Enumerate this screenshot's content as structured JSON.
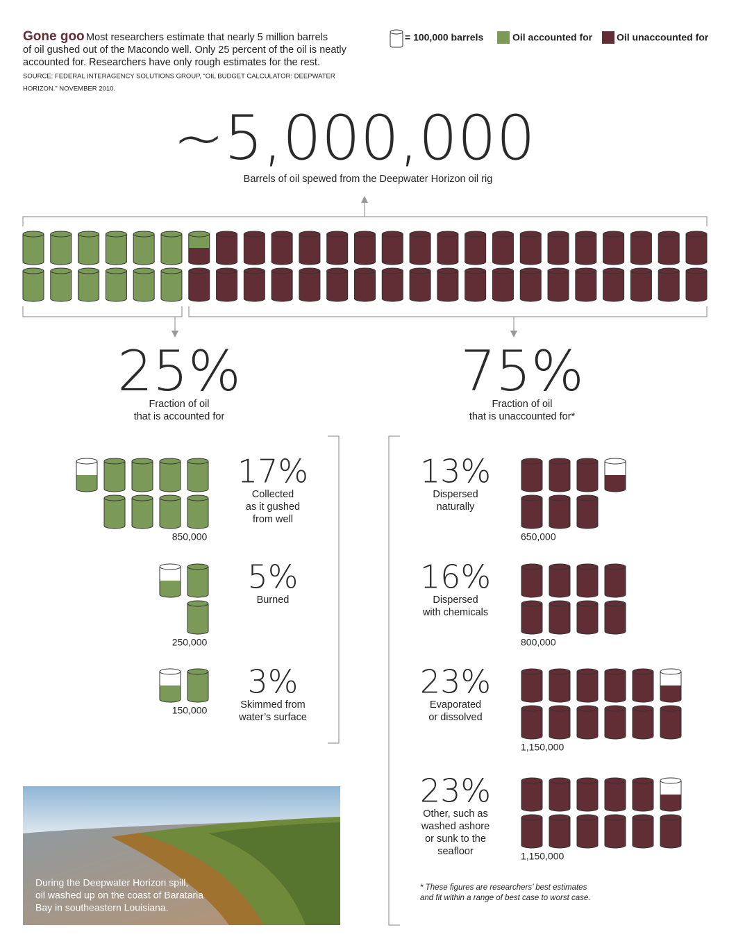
{
  "header": {
    "title": "Gone goo",
    "intro": [
      "Most researchers estimate that nearly 5 million barrels",
      "of oil gushed out of the Macondo well. Only 25 percent of the oil is neatly",
      "accounted for. Researchers have only rough estimates for the rest."
    ],
    "source": [
      "SOURCE:  FEDERAL INTERAGENCY SOLUTIONS GROUP, “OIL BUDGET CALCULATOR: DEEPWATER",
      "HORIZON.” NOVEMBER 2010."
    ]
  },
  "legend": {
    "unit": {
      "value": 100000,
      "label": "= 100,000 barrels"
    },
    "accounted": {
      "label": "Oil accounted for",
      "color": "#7b9a57"
    },
    "unaccounted": {
      "label": "Oil unaccounted for",
      "color": "#612e35"
    }
  },
  "total": {
    "value": 5000000,
    "label": "~5,000,000",
    "caption": "Barrels of oil spewed from the Deepwater Horizon oil rig"
  },
  "accounted": {
    "percent": {
      "value": 25,
      "label": "25%"
    },
    "caption": [
      "Fraction of oil",
      "that is accounted for"
    ],
    "groups": [
      {
        "percent": {
          "value": 17,
          "label": "17%"
        },
        "caption": [
          "Collected",
          "as it gushed",
          "from well"
        ],
        "amount": {
          "value": 850000,
          "label": "850,000"
        }
      },
      {
        "percent": {
          "value": 5,
          "label": "5%"
        },
        "caption": [
          "Burned"
        ],
        "amount": {
          "value": 250000,
          "label": "250,000"
        }
      },
      {
        "percent": {
          "value": 3,
          "label": "3%"
        },
        "caption": [
          "Skimmed from",
          "water’s surface"
        ],
        "amount": {
          "value": 150000,
          "label": "150,000"
        }
      }
    ]
  },
  "unaccounted": {
    "percent": {
      "value": 75,
      "label": "75%"
    },
    "caption": [
      "Fraction of oil",
      "that is unaccounted for*"
    ],
    "groups": [
      {
        "percent": {
          "value": 13,
          "label": "13%"
        },
        "caption": [
          "Dispersed",
          "naturally"
        ],
        "amount": {
          "value": 650000,
          "label": "650,000"
        }
      },
      {
        "percent": {
          "value": 16,
          "label": "16%"
        },
        "caption": [
          "Dispersed",
          "with chemicals"
        ],
        "amount": {
          "value": 800000,
          "label": "800,000"
        }
      },
      {
        "percent": {
          "value": 23,
          "label": "23%"
        },
        "caption": [
          "Evaporated",
          "or dissolved"
        ],
        "amount": {
          "value": 1150000,
          "label": "1,150,000"
        }
      },
      {
        "percent": {
          "value": 23,
          "label": "23%"
        },
        "caption": [
          "Other, such as",
          "washed ashore",
          "or sunk to the",
          "seafloor"
        ],
        "amount": {
          "value": 1150000,
          "label": "1,150,000"
        }
      }
    ],
    "note": [
      "* These figures are researchers’ best estimates",
      "and fit within a range of best case to worst case."
    ]
  },
  "photo": {
    "caption": [
      "During the Deepwater Horizon spill,",
      "oil washed up on the coast of Barataria",
      "Bay in southeastern Louisiana."
    ]
  }
}
